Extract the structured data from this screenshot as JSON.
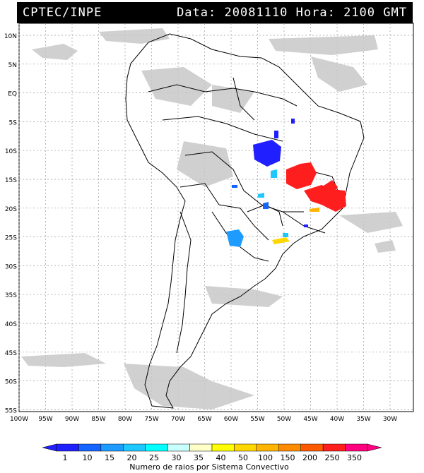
{
  "header": {
    "source": "CPTEC/INPE",
    "date_label": "Data:",
    "date_value": "20081110",
    "hour_label": "Hora:",
    "hour_value": "2100",
    "tz": "GMT"
  },
  "axes": {
    "lat_labels": [
      "10N",
      "5N",
      "EQ",
      "5S",
      "10S",
      "15S",
      "20S",
      "25S",
      "30S",
      "35S",
      "40S",
      "45S",
      "50S",
      "55S"
    ],
    "lon_labels": [
      "100W",
      "95W",
      "90W",
      "85W",
      "80W",
      "75W",
      "70W",
      "65W",
      "60W",
      "55W",
      "50W",
      "45W",
      "40W",
      "35W",
      "30W"
    ]
  },
  "colorbar": {
    "labels": [
      "1",
      "10",
      "15",
      "20",
      "25",
      "30",
      "35",
      "40",
      "50",
      "100",
      "150",
      "200",
      "250",
      "350"
    ],
    "colors": [
      "#1f1fff",
      "#1464ff",
      "#1e9bff",
      "#1ec8ff",
      "#00ffff",
      "#c8ffff",
      "#ffffc8",
      "#ffff00",
      "#ffd700",
      "#ffb400",
      "#ff8c00",
      "#ff5a00",
      "#ff1e1e",
      "#ff0080"
    ],
    "title": "Numero de raios por Sistema Convectivo"
  },
  "colors": {
    "map_border": "#000000",
    "grid": "#999999",
    "clouds": "#c8c8c8"
  }
}
